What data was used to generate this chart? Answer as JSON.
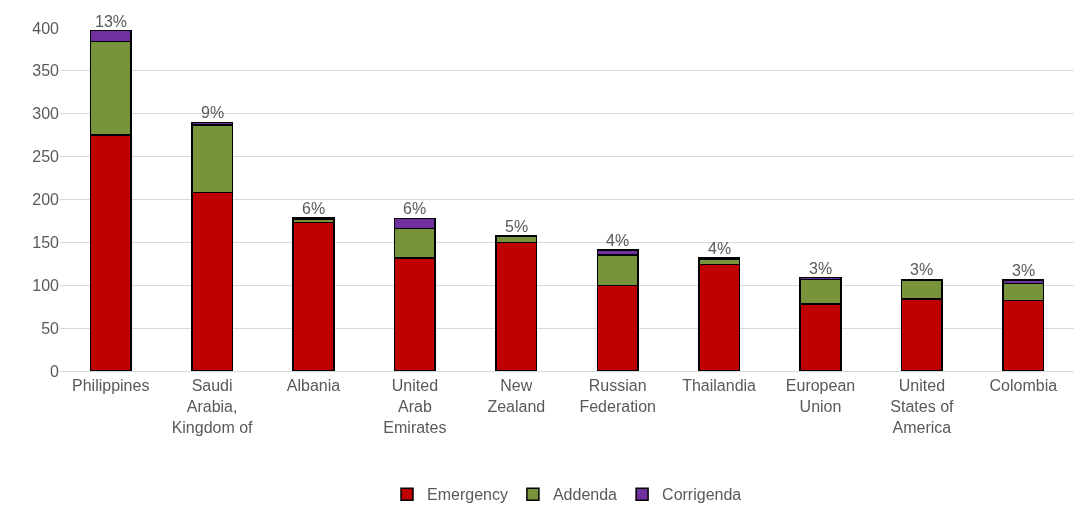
{
  "chart_data": {
    "type": "bar",
    "stacked": true,
    "categories": [
      "Philippines",
      "Saudi Arabia, Kingdom of",
      "Albania",
      "United Arab Emirates",
      "New Zealand",
      "Russian Federation",
      "Thailandia",
      "European Union",
      "United States of America",
      "Colombia"
    ],
    "series": [
      {
        "name": "Emergency",
        "color": "#c00000",
        "values": [
          275,
          208,
          173,
          132,
          150,
          100,
          124,
          78,
          84,
          82
        ]
      },
      {
        "name": "Addenda",
        "color": "#77933c",
        "values": [
          109,
          79,
          4,
          34,
          7,
          35,
          6,
          29,
          22,
          20
        ]
      },
      {
        "name": "Corrigenda",
        "color": "#7030a0",
        "values": [
          13,
          3,
          2,
          12,
          1,
          6,
          2,
          2,
          1,
          4
        ]
      }
    ],
    "ylim": [
      0,
      400
    ],
    "yticks": [
      0,
      50,
      100,
      150,
      200,
      250,
      300,
      350,
      400
    ],
    "grid": "y",
    "legend": "bottom",
    "annotations": [
      {
        "text": "13%",
        "x": "Philippines",
        "y": 397
      },
      {
        "text": "9%",
        "x": "Saudi Arabia, Kingdom of",
        "y": 290
      },
      {
        "text": "6%",
        "x": "Albania",
        "y": 179
      },
      {
        "text": "6%",
        "x": "United Arab Emirates",
        "y": 178
      },
      {
        "text": "5%",
        "x": "New Zealand",
        "y": 158
      },
      {
        "text": "4%",
        "x": "Russian Federation",
        "y": 141
      },
      {
        "text": "4%",
        "x": "Thailandia",
        "y": 132
      },
      {
        "text": "3%",
        "x": "European Union",
        "y": 109
      },
      {
        "text": "3%",
        "x": "United States of America",
        "y": 107
      },
      {
        "text": "3%",
        "x": "Colombia",
        "y": 106
      }
    ]
  }
}
